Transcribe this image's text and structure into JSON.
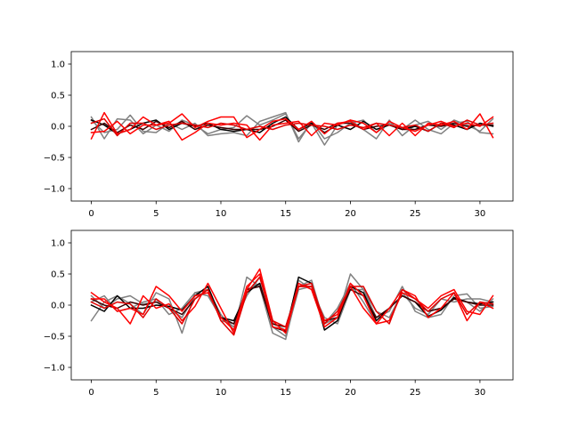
{
  "figure": {
    "background": "#ffffff"
  },
  "chart_data": [
    {
      "type": "line",
      "title": "",
      "xlabel": "",
      "ylabel": "",
      "xlim": [
        -1.55,
        32.55
      ],
      "ylim": [
        -1.2,
        1.2
      ],
      "xticks": [
        0,
        5,
        10,
        15,
        20,
        25,
        30
      ],
      "yticks": [
        -1.0,
        -0.5,
        0.0,
        0.5,
        1.0
      ],
      "ytick_labels": [
        "−1.0",
        "−0.5",
        "0.0",
        "0.5",
        "1.0"
      ],
      "grid": false,
      "legend": "none",
      "x": [
        0,
        1,
        2,
        3,
        4,
        5,
        6,
        7,
        8,
        9,
        10,
        11,
        12,
        13,
        14,
        15,
        16,
        17,
        18,
        19,
        20,
        21,
        22,
        23,
        24,
        25,
        26,
        27,
        28,
        29,
        30,
        31
      ],
      "series": [
        {
          "color": "#808080",
          "values": [
            0.15,
            -0.2,
            0.12,
            0.1,
            -0.12,
            0.02,
            -0.08,
            0.1,
            0.02,
            -0.12,
            -0.05,
            -0.02,
            0.17,
            0.02,
            0.1,
            0.2,
            -0.2,
            0.05,
            -0.3,
            0.02,
            0.1,
            -0.05,
            -0.2,
            0.1,
            -0.15,
            0.02,
            0.08,
            -0.05,
            0.1,
            0.02,
            -0.08,
            0.12
          ]
        },
        {
          "color": "#808080",
          "values": [
            0.1,
            -0.1,
            -0.05,
            0.18,
            -0.08,
            -0.1,
            0.05,
            -0.05,
            0.05,
            -0.15,
            -0.12,
            -0.1,
            -0.15,
            0.08,
            0.15,
            0.22,
            -0.25,
            0.08,
            -0.2,
            -0.1,
            0.05,
            0.1,
            -0.1,
            0.05,
            -0.05,
            0.1,
            -0.05,
            -0.12,
            0.05,
            0.08,
            -0.1,
            -0.12
          ]
        },
        {
          "color": "#000000",
          "values": [
            0.1,
            0.02,
            -0.12,
            -0.05,
            0.05,
            0.1,
            -0.05,
            0.05,
            0.0,
            0.05,
            -0.05,
            -0.08,
            -0.05,
            -0.1,
            0.05,
            0.15,
            -0.05,
            0.05,
            -0.1,
            0.02,
            -0.05,
            0.08,
            -0.05,
            0.02,
            -0.05,
            0.0,
            -0.08,
            0.05,
            0.02,
            -0.05,
            0.05,
            0.0
          ]
        },
        {
          "color": "#3a0000",
          "values": [
            -0.05,
            0.05,
            -0.1,
            0.02,
            -0.05,
            0.08,
            -0.02,
            0.08,
            -0.05,
            0.02,
            -0.02,
            -0.05,
            -0.05,
            -0.05,
            0.0,
            0.1,
            -0.08,
            0.02,
            -0.05,
            0.05,
            0.05,
            -0.05,
            0.0,
            0.02,
            -0.05,
            -0.05,
            0.02,
            0.0,
            0.05,
            0.0,
            0.02,
            0.02
          ]
        },
        {
          "color": "#ff0000",
          "values": [
            -0.2,
            0.22,
            -0.12,
            -0.05,
            0.15,
            0.02,
            0.05,
            0.2,
            -0.02,
            0.08,
            0.15,
            0.15,
            -0.18,
            -0.05,
            0.08,
            0.12,
            -0.05,
            0.08,
            -0.12,
            0.05,
            0.08,
            -0.05,
            0.05,
            -0.15,
            0.05,
            -0.15,
            0.05,
            0.02,
            0.08,
            -0.05,
            0.2,
            -0.18
          ]
        },
        {
          "color": "#ff0000",
          "values": [
            -0.1,
            -0.08,
            0.08,
            -0.12,
            0.02,
            0.02,
            0.08,
            -0.22,
            -0.1,
            0.05,
            0.02,
            0.05,
            0.02,
            -0.22,
            0.02,
            0.05,
            0.08,
            -0.15,
            0.05,
            0.02,
            0.1,
            0.05,
            -0.1,
            0.08,
            -0.02,
            -0.08,
            0.02,
            0.08,
            0.0,
            0.05,
            0.0,
            0.15
          ]
        },
        {
          "color": "#e00000",
          "values": [
            0.05,
            0.12,
            -0.15,
            0.05,
            0.05,
            -0.05,
            0.02,
            0.05,
            0.02,
            -0.02,
            0.05,
            0.02,
            -0.05,
            0.0,
            -0.05,
            0.02,
            0.05,
            0.02,
            0.0,
            -0.05,
            0.02,
            -0.02,
            0.05,
            0.02,
            -0.02,
            0.02,
            -0.08,
            0.05,
            -0.02,
            0.1,
            0.02,
            0.05
          ]
        }
      ]
    },
    {
      "type": "line",
      "title": "",
      "xlabel": "",
      "ylabel": "",
      "xlim": [
        -1.55,
        32.55
      ],
      "ylim": [
        -1.2,
        1.2
      ],
      "xticks": [
        0,
        5,
        10,
        15,
        20,
        25,
        30
      ],
      "yticks": [
        -1.0,
        -0.5,
        0.0,
        0.5,
        1.0
      ],
      "ytick_labels": [
        "−1.0",
        "−0.5",
        "0.0",
        "0.5",
        "1.0"
      ],
      "grid": false,
      "legend": "none",
      "x": [
        0,
        1,
        2,
        3,
        4,
        5,
        6,
        7,
        8,
        9,
        10,
        11,
        12,
        13,
        14,
        15,
        16,
        17,
        18,
        19,
        20,
        21,
        22,
        23,
        24,
        25,
        26,
        27,
        28,
        29,
        30,
        31
      ],
      "series": [
        {
          "color": "#808080",
          "values": [
            -0.25,
            0.05,
            0.15,
            0.02,
            -0.15,
            0.2,
            0.1,
            -0.45,
            0.2,
            0.25,
            -0.15,
            -0.4,
            0.45,
            0.3,
            -0.45,
            -0.55,
            0.3,
            0.4,
            -0.3,
            -0.2,
            0.5,
            0.25,
            -0.2,
            -0.1,
            0.3,
            -0.1,
            -0.2,
            -0.15,
            0.15,
            0.18,
            -0.05,
            -0.02
          ]
        },
        {
          "color": "#808080",
          "values": [
            0.15,
            -0.05,
            0.1,
            0.15,
            0.02,
            0.05,
            -0.05,
            -0.2,
            0.15,
            0.3,
            -0.25,
            -0.3,
            0.15,
            0.45,
            -0.3,
            -0.4,
            0.4,
            0.25,
            -0.2,
            -0.3,
            0.25,
            0.25,
            -0.1,
            -0.2,
            0.2,
            -0.05,
            -0.15,
            0.1,
            0.05,
            0.1,
            0.1,
            0.05
          ]
        },
        {
          "color": "#808080",
          "values": [
            0.05,
            0.15,
            -0.1,
            -0.05,
            0.05,
            0.1,
            -0.15,
            -0.05,
            0.2,
            0.15,
            -0.2,
            -0.35,
            0.25,
            0.35,
            -0.35,
            -0.5,
            0.25,
            0.3,
            -0.3,
            -0.05,
            0.35,
            0.05,
            -0.3,
            -0.05,
            0.15,
            0.05,
            -0.1,
            -0.05,
            0.1,
            0.05,
            -0.1,
            0.1
          ]
        },
        {
          "color": "#000000",
          "values": [
            0.0,
            -0.1,
            0.15,
            -0.05,
            -0.05,
            0.0,
            -0.02,
            -0.08,
            0.15,
            0.3,
            -0.2,
            -0.25,
            0.2,
            0.35,
            -0.35,
            -0.42,
            0.45,
            0.35,
            -0.4,
            -0.25,
            0.3,
            0.2,
            -0.25,
            -0.05,
            0.15,
            0.05,
            -0.18,
            -0.08,
            0.12,
            0.05,
            0.02,
            0.05
          ]
        },
        {
          "color": "#3a0000",
          "values": [
            0.1,
            0.0,
            -0.05,
            0.05,
            0.0,
            0.05,
            -0.05,
            -0.15,
            0.1,
            0.25,
            -0.2,
            -0.3,
            0.25,
            0.3,
            -0.3,
            -0.35,
            0.3,
            0.3,
            -0.25,
            -0.2,
            0.25,
            0.15,
            -0.2,
            -0.05,
            0.15,
            0.05,
            -0.1,
            -0.05,
            0.1,
            0.05,
            0.0,
            0.0
          ]
        },
        {
          "color": "#ff0000",
          "values": [
            0.2,
            0.05,
            -0.05,
            -0.3,
            0.15,
            -0.05,
            0.02,
            -0.25,
            -0.02,
            0.35,
            -0.05,
            -0.45,
            0.25,
            0.58,
            -0.25,
            -0.45,
            0.3,
            0.3,
            -0.25,
            -0.15,
            0.3,
            -0.05,
            -0.3,
            -0.05,
            0.25,
            0.15,
            -0.2,
            -0.05,
            0.2,
            -0.25,
            0.05,
            -0.05
          ]
        },
        {
          "color": "#ff0000",
          "values": [
            0.1,
            0.1,
            -0.1,
            -0.05,
            -0.15,
            0.3,
            0.15,
            -0.1,
            0.15,
            0.2,
            -0.2,
            -0.4,
            0.3,
            0.5,
            -0.35,
            -0.4,
            0.35,
            0.25,
            -0.35,
            -0.2,
            0.35,
            0.15,
            -0.3,
            -0.25,
            0.2,
            0.1,
            -0.05,
            0.15,
            0.25,
            -0.1,
            -0.15,
            0.15
          ]
        },
        {
          "color": "#e00000",
          "values": [
            0.05,
            -0.05,
            0.05,
            0.02,
            -0.2,
            0.1,
            -0.05,
            -0.3,
            0.1,
            0.25,
            -0.25,
            -0.48,
            0.2,
            0.45,
            -0.25,
            -0.35,
            0.3,
            0.35,
            -0.3,
            -0.1,
            0.3,
            0.3,
            -0.1,
            -0.3,
            0.25,
            0.1,
            -0.1,
            0.1,
            0.2,
            -0.15,
            0.05,
            0.02
          ]
        }
      ]
    }
  ]
}
